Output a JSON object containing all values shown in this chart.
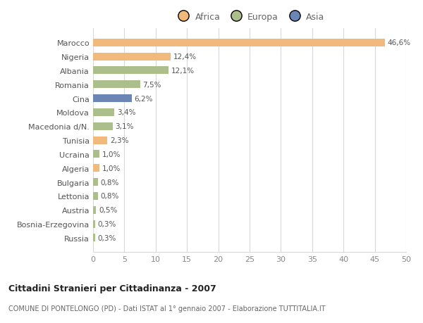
{
  "countries": [
    "Marocco",
    "Nigeria",
    "Albania",
    "Romania",
    "Cina",
    "Moldova",
    "Macedonia d/N.",
    "Tunisia",
    "Ucraina",
    "Algeria",
    "Bulgaria",
    "Lettonia",
    "Austria",
    "Bosnia-Erzegovina",
    "Russia"
  ],
  "values": [
    46.6,
    12.4,
    12.1,
    7.5,
    6.2,
    3.4,
    3.1,
    2.3,
    1.0,
    1.0,
    0.8,
    0.8,
    0.5,
    0.3,
    0.3
  ],
  "labels": [
    "46,6%",
    "12,4%",
    "12,1%",
    "7,5%",
    "6,2%",
    "3,4%",
    "3,1%",
    "2,3%",
    "1,0%",
    "1,0%",
    "0,8%",
    "0,8%",
    "0,5%",
    "0,3%",
    "0,3%"
  ],
  "colors": [
    "#F2B97C",
    "#F2B97C",
    "#ABBE8B",
    "#ABBE8B",
    "#6B85B5",
    "#ABBE8B",
    "#ABBE8B",
    "#F2B97C",
    "#ABBE8B",
    "#F2B97C",
    "#ABBE8B",
    "#ABBE8B",
    "#ABBE8B",
    "#ABBE8B",
    "#ABBE8B"
  ],
  "legend_labels": [
    "Africa",
    "Europa",
    "Asia"
  ],
  "legend_colors": [
    "#F2B97C",
    "#ABBE8B",
    "#6B85B5"
  ],
  "title": "Cittadini Stranieri per Cittadinanza - 2007",
  "subtitle": "COMUNE DI PONTELONGO (PD) - Dati ISTAT al 1° gennaio 2007 - Elaborazione TUTTITALIA.IT",
  "xlim": [
    0,
    50
  ],
  "xticks": [
    0,
    5,
    10,
    15,
    20,
    25,
    30,
    35,
    40,
    45,
    50
  ],
  "background_color": "#ffffff",
  "grid_color": "#d8d8d8",
  "bar_height": 0.55
}
